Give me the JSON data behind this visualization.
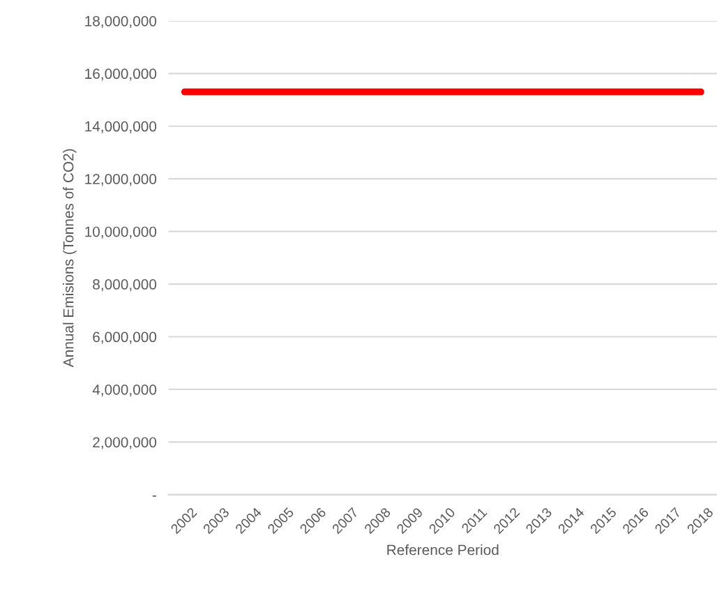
{
  "chart_data": {
    "type": "line",
    "ylabel": "Annual Emisions (Tonnes of CO2)",
    "xlabel": "Reference Period",
    "categories": [
      "2002",
      "2003",
      "2004",
      "2005",
      "2006",
      "2007",
      "2008",
      "2009",
      "2010",
      "2011",
      "2012",
      "2013",
      "2014",
      "2015",
      "2016",
      "2017",
      "2018"
    ],
    "series": [
      {
        "color": "#ff0000",
        "values": [
          15300000,
          15300000,
          15300000,
          15300000,
          15300000,
          15300000,
          15300000,
          15300000,
          15300000,
          15300000,
          15300000,
          15300000,
          15300000,
          15300000,
          15300000,
          15300000,
          15300000
        ]
      }
    ],
    "ylim": [
      0,
      18000000
    ],
    "yticks": [
      {
        "value": 0,
        "label": "-"
      },
      {
        "value": 2000000,
        "label": "2,000,000"
      },
      {
        "value": 4000000,
        "label": "4,000,000"
      },
      {
        "value": 6000000,
        "label": "6,000,000"
      },
      {
        "value": 8000000,
        "label": "8,000,000"
      },
      {
        "value": 10000000,
        "label": "10,000,000"
      },
      {
        "value": 12000000,
        "label": "12,000,000"
      },
      {
        "value": 14000000,
        "label": "14,000,000"
      },
      {
        "value": 16000000,
        "label": "16,000,000"
      },
      {
        "value": 18000000,
        "label": "18,000,000"
      }
    ],
    "grid": "y",
    "legend": false,
    "marker": "none",
    "line_style": "solid"
  }
}
